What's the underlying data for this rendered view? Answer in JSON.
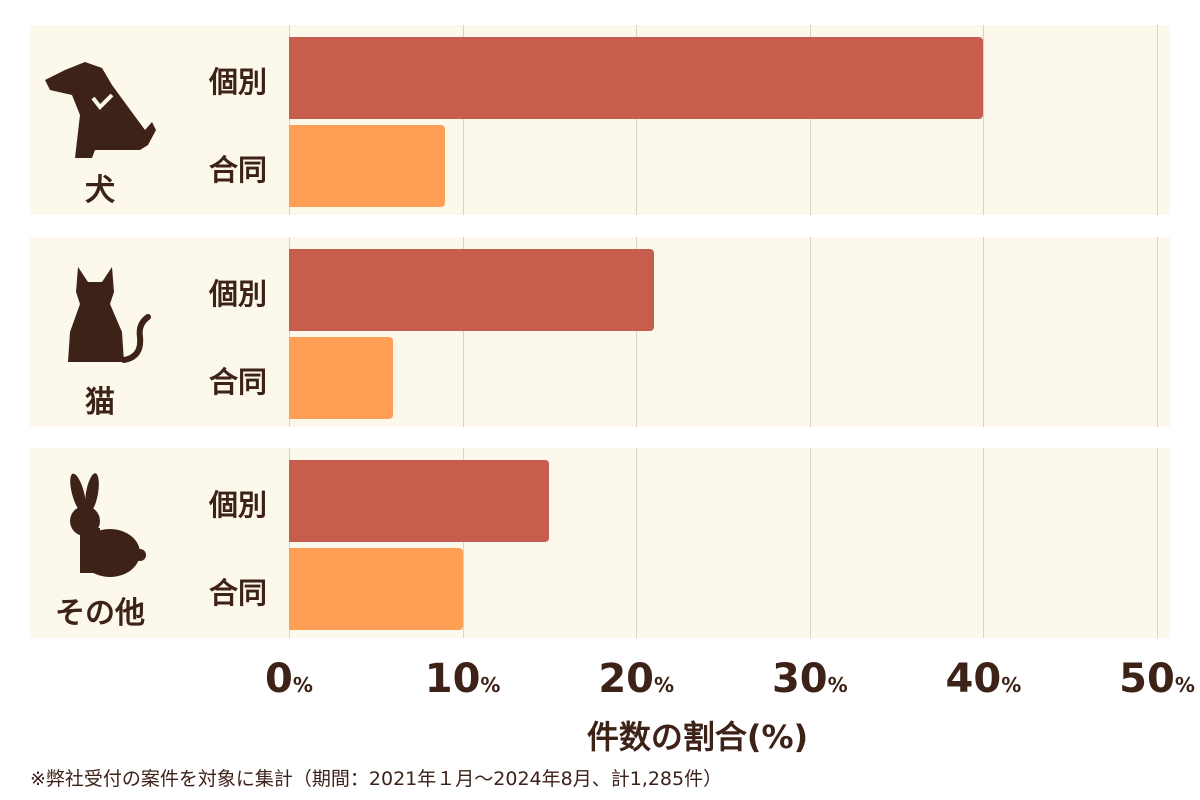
{
  "chart_data": {
    "type": "bar",
    "orientation": "horizontal",
    "groups": [
      "犬",
      "猫",
      "その他"
    ],
    "categories": [
      "個別",
      "合同"
    ],
    "series": [
      {
        "group": "犬",
        "values": [
          40,
          9
        ]
      },
      {
        "group": "猫",
        "values": [
          21,
          6
        ]
      },
      {
        "group": "その他",
        "values": [
          15,
          10
        ]
      }
    ],
    "xlim": [
      0,
      50
    ],
    "ticks": [
      0,
      10,
      20,
      30,
      40,
      50
    ],
    "tick_unit": "%",
    "xlabel": "件数の割合(%)",
    "grid": true,
    "colors": {
      "個別": "#c65d4d",
      "合同": "#ff9f55",
      "text": "#3d2218",
      "panel": "#fdf8ec"
    },
    "icons": [
      "dog-icon",
      "cat-icon",
      "rabbit-icon"
    ]
  },
  "note": "※弊社受付の案件を対象に集計（期間：2021年１月～2024年8月、計1,285件）"
}
